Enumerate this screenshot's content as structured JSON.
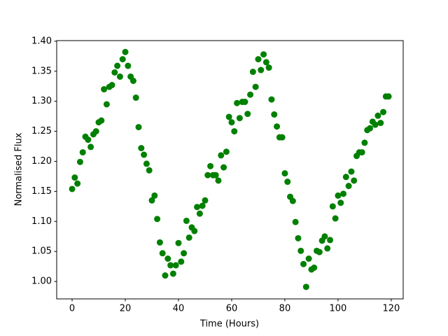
{
  "chart_data": {
    "type": "scatter",
    "xlabel": "Time (Hours)",
    "ylabel": "Normalised Flux",
    "x": [
      0,
      1,
      2,
      3,
      4,
      5,
      6,
      7,
      8,
      9,
      10,
      11,
      12,
      13,
      14,
      15,
      16,
      17,
      18,
      19,
      20,
      21,
      22,
      23,
      24,
      25,
      26,
      27,
      28,
      29,
      30,
      31,
      32,
      33,
      34,
      35,
      36,
      37,
      38,
      39,
      40,
      41,
      42,
      43,
      44,
      45,
      46,
      47,
      48,
      49,
      50,
      51,
      52,
      53,
      54,
      55,
      56,
      57,
      58,
      59,
      60,
      61,
      62,
      63,
      64,
      65,
      66,
      67,
      68,
      69,
      70,
      71,
      72,
      73,
      74,
      75,
      76,
      77,
      78,
      79,
      80,
      81,
      82,
      83,
      84,
      85,
      86,
      87,
      88,
      89,
      90,
      91,
      92,
      93,
      94,
      95,
      96,
      97,
      98,
      99,
      100,
      101,
      102,
      103,
      104,
      105,
      106,
      107,
      108,
      109,
      110,
      111,
      112,
      113,
      114,
      115,
      116,
      117,
      118,
      119
    ],
    "values": [
      1.154,
      1.173,
      1.163,
      1.199,
      1.215,
      1.241,
      1.236,
      1.224,
      1.245,
      1.25,
      1.265,
      1.268,
      1.32,
      1.295,
      1.324,
      1.327,
      1.348,
      1.359,
      1.341,
      1.37,
      1.382,
      1.359,
      1.341,
      1.334,
      1.306,
      1.257,
      1.222,
      1.211,
      1.196,
      1.185,
      1.135,
      1.143,
      1.104,
      1.065,
      1.047,
      1.01,
      1.038,
      1.027,
      1.013,
      1.027,
      1.064,
      1.033,
      1.047,
      1.101,
      1.073,
      1.09,
      1.084,
      1.124,
      1.113,
      1.126,
      1.135,
      1.177,
      1.192,
      1.177,
      1.177,
      1.168,
      1.21,
      1.19,
      1.216,
      1.274,
      1.265,
      1.25,
      1.297,
      1.272,
      1.299,
      1.299,
      1.279,
      1.311,
      1.349,
      1.324,
      1.37,
      1.352,
      1.378,
      1.365,
      1.356,
      1.303,
      1.278,
      1.258,
      1.24,
      1.24,
      1.18,
      1.166,
      1.141,
      1.134,
      1.099,
      1.072,
      1.051,
      1.029,
      0.991,
      1.038,
      1.02,
      1.023,
      1.051,
      1.049,
      1.068,
      1.075,
      1.055,
      1.069,
      1.125,
      1.105,
      1.143,
      1.131,
      1.146,
      1.174,
      1.159,
      1.183,
      1.168,
      1.209,
      1.215,
      1.215,
      1.231,
      1.252,
      1.255,
      1.266,
      1.261,
      1.276,
      1.264,
      1.282,
      1.308,
      1.308
    ],
    "color": "#008000",
    "xlim": [
      -5.8,
      124.5
    ],
    "ylim": [
      0.971,
      1.401
    ],
    "xticks": [
      0,
      20,
      40,
      60,
      80,
      100,
      120
    ],
    "yticks": [
      {
        "value": 1.0,
        "label": "1.00"
      },
      {
        "value": 1.05,
        "label": "1.05"
      },
      {
        "value": 1.1,
        "label": "1.10"
      },
      {
        "value": 1.15,
        "label": "1.15"
      },
      {
        "value": 1.2,
        "label": "1.20"
      },
      {
        "value": 1.25,
        "label": "1.25"
      },
      {
        "value": 1.3,
        "label": "1.30"
      },
      {
        "value": 1.35,
        "label": "1.35"
      },
      {
        "value": 1.4,
        "label": "1.40"
      }
    ],
    "grid": false
  }
}
